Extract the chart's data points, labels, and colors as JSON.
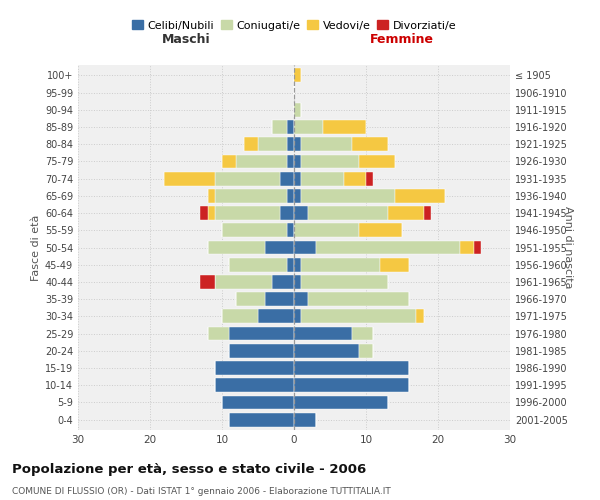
{
  "age_groups": [
    "0-4",
    "5-9",
    "10-14",
    "15-19",
    "20-24",
    "25-29",
    "30-34",
    "35-39",
    "40-44",
    "45-49",
    "50-54",
    "55-59",
    "60-64",
    "65-69",
    "70-74",
    "75-79",
    "80-84",
    "85-89",
    "90-94",
    "95-99",
    "100+"
  ],
  "birth_years": [
    "2001-2005",
    "1996-2000",
    "1991-1995",
    "1986-1990",
    "1981-1985",
    "1976-1980",
    "1971-1975",
    "1966-1970",
    "1961-1965",
    "1956-1960",
    "1951-1955",
    "1946-1950",
    "1941-1945",
    "1936-1940",
    "1931-1935",
    "1926-1930",
    "1921-1925",
    "1916-1920",
    "1911-1915",
    "1906-1910",
    "≤ 1905"
  ],
  "colors": {
    "celibi": "#3a6ea5",
    "coniugati": "#c8d9a8",
    "vedovi": "#f5c842",
    "divorziati": "#cc2222"
  },
  "maschi": {
    "celibi": [
      9,
      10,
      11,
      11,
      9,
      9,
      5,
      4,
      3,
      1,
      4,
      1,
      2,
      1,
      2,
      1,
      1,
      1,
      0,
      0,
      0
    ],
    "coniugati": [
      0,
      0,
      0,
      0,
      0,
      3,
      5,
      4,
      8,
      8,
      8,
      9,
      9,
      10,
      9,
      7,
      4,
      2,
      0,
      0,
      0
    ],
    "vedovi": [
      0,
      0,
      0,
      0,
      0,
      0,
      0,
      0,
      0,
      0,
      0,
      0,
      1,
      1,
      7,
      2,
      2,
      0,
      0,
      0,
      0
    ],
    "divorziati": [
      0,
      0,
      0,
      0,
      0,
      0,
      0,
      0,
      2,
      0,
      0,
      0,
      1,
      0,
      0,
      0,
      0,
      0,
      0,
      0,
      0
    ]
  },
  "femmine": {
    "celibi": [
      3,
      13,
      16,
      16,
      9,
      8,
      1,
      2,
      1,
      1,
      3,
      0,
      2,
      1,
      1,
      1,
      1,
      0,
      0,
      0,
      0
    ],
    "coniugati": [
      0,
      0,
      0,
      0,
      2,
      3,
      16,
      14,
      12,
      11,
      20,
      9,
      11,
      13,
      6,
      8,
      7,
      4,
      1,
      0,
      0
    ],
    "vedovi": [
      0,
      0,
      0,
      0,
      0,
      0,
      1,
      0,
      0,
      4,
      2,
      6,
      5,
      7,
      3,
      5,
      5,
      6,
      0,
      0,
      1
    ],
    "divorziati": [
      0,
      0,
      0,
      0,
      0,
      0,
      0,
      0,
      0,
      0,
      1,
      0,
      1,
      0,
      1,
      0,
      0,
      0,
      0,
      0,
      0
    ]
  },
  "xlim": 30,
  "title": "Popolazione per età, sesso e stato civile - 2006",
  "subtitle": "COMUNE DI FLUSSIO (OR) - Dati ISTAT 1° gennaio 2006 - Elaborazione TUTTITALIA.IT",
  "xlabel_left": "Maschi",
  "xlabel_right": "Femmine",
  "ylabel_left": "Fasce di età",
  "ylabel_right": "Anni di nascita",
  "legend_labels": [
    "Celibi/Nubili",
    "Coniugati/e",
    "Vedovi/e",
    "Divorziati/e"
  ],
  "bg_color": "#f0f0f0",
  "grid_color": "#cccccc"
}
